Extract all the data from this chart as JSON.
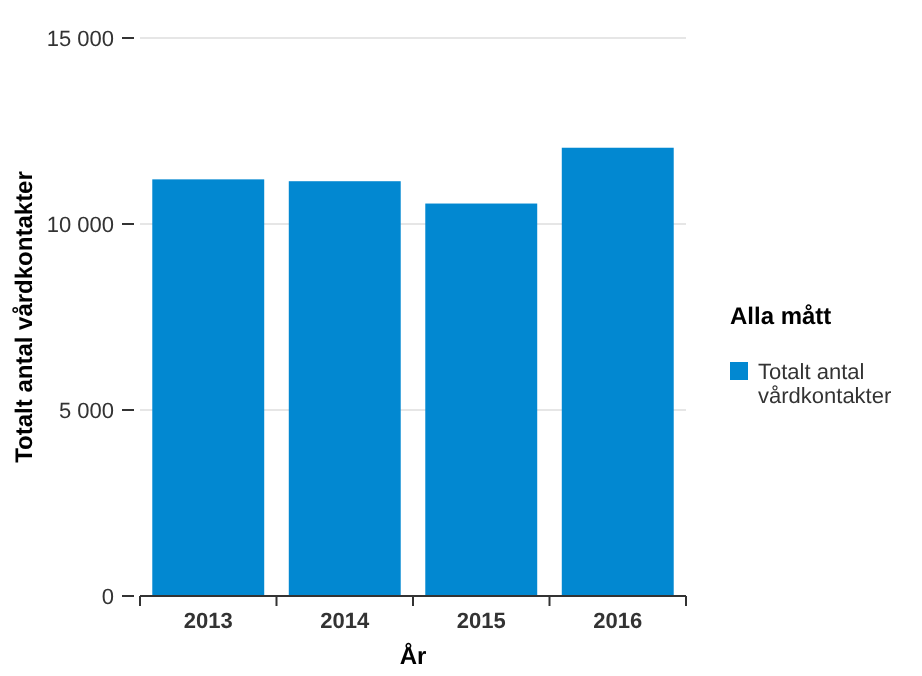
{
  "chart_data": {
    "type": "bar",
    "xlabel": "År",
    "ylabel": "Totalt antal vårdkontakter",
    "legend_title": "Alla mått",
    "categories": [
      "2013",
      "2014",
      "2015",
      "2016"
    ],
    "series": [
      {
        "name": "Totalt antal vårdkontakter",
        "color": "#0288d1",
        "values": [
          11200,
          11150,
          10550,
          12050
        ]
      }
    ],
    "ylim": [
      0,
      15000
    ],
    "yticks": [
      0,
      {
        "value": 5000,
        "label": "5 000"
      },
      {
        "value": 10000,
        "label": "10 000"
      },
      {
        "value": 15000,
        "label": "15 000"
      }
    ],
    "grid": "y",
    "legend": "right"
  }
}
